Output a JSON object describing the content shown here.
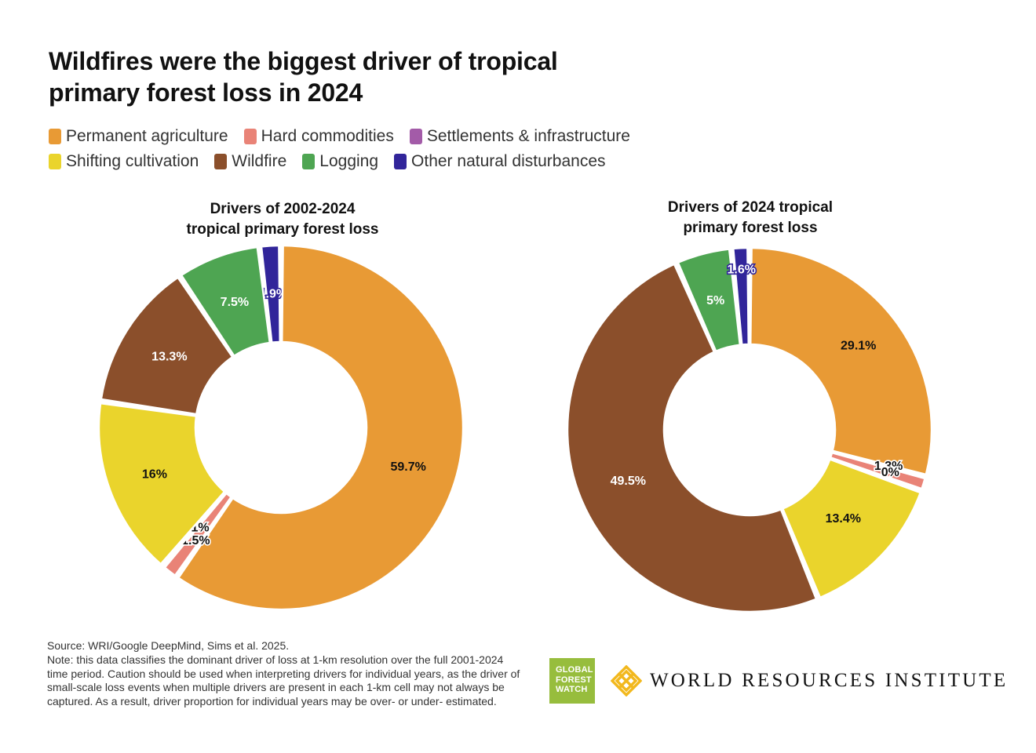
{
  "title": "Wildfires were the biggest driver of tropical primary forest loss in 2024",
  "legend": [
    {
      "label": "Permanent agriculture",
      "color": "#E89A35"
    },
    {
      "label": "Hard commodities",
      "color": "#E98377"
    },
    {
      "label": "Settlements & infrastructure",
      "color": "#A35BA8"
    },
    {
      "label": "Shifting cultivation",
      "color": "#EAD42C"
    },
    {
      "label": "Wildfire",
      "color": "#8B4F2B"
    },
    {
      "label": "Logging",
      "color": "#4EA552"
    },
    {
      "label": "Other natural disturbances",
      "color": "#31259A"
    }
  ],
  "chart_data": [
    {
      "type": "pie",
      "title_line1": "Drivers of 2002-2024",
      "title_line2": "tropical primary forest loss",
      "categories": [
        "Permanent agriculture",
        "Hard commodities",
        "Settlements & infrastructure",
        "Shifting cultivation",
        "Wildfire",
        "Logging",
        "Other natural disturbances"
      ],
      "values": [
        59.7,
        1.5,
        0.1,
        16,
        13.3,
        7.5,
        1.9
      ],
      "labels": [
        "59.7%",
        "1.5%",
        "0.1%",
        "16%",
        "13.3%",
        "7.5%",
        "1.9%"
      ]
    },
    {
      "type": "pie",
      "title_line1": "Drivers of 2024 tropical",
      "title_line2": "primary forest loss",
      "categories": [
        "Permanent agriculture",
        "Hard commodities",
        "Settlements & infrastructure",
        "Shifting cultivation",
        "Wildfire",
        "Logging",
        "Other natural disturbances"
      ],
      "values": [
        29.1,
        1.3,
        0,
        13.4,
        49.5,
        5,
        1.6
      ],
      "labels": [
        "29.1%",
        "1.3%",
        "0%",
        "13.4%",
        "49.5%",
        "5%",
        "1.6%"
      ]
    }
  ],
  "footer": {
    "source": "Source: WRI/Google DeepMind, Sims et al. 2025.",
    "note": "Note: this data classifies the dominant driver of loss at 1-km resolution over the full 2001-2024 time period. Caution should be used when interpreting drivers for individual years, as the driver of small-scale loss events when multiple drivers are present in each 1-km cell may not always be captured. As a result, driver proportion for individual years may be over- or under- estimated."
  },
  "logos": {
    "gfw_line1": "GLOBAL",
    "gfw_line2": "FOREST",
    "gfw_line3": "WATCH",
    "wri": "WORLD RESOURCES INSTITUTE"
  }
}
